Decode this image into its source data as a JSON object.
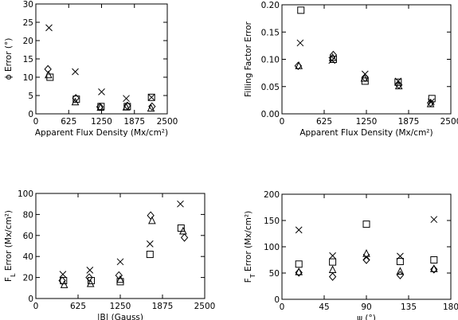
{
  "chart_data": [
    {
      "type": "scatter",
      "id": "phi-error",
      "title": "",
      "xlabel": "Apparent Flux Density (Mx/cm²)",
      "ylabel": "ϕ Error (°)",
      "xlim": [
        0,
        2500
      ],
      "ylim": [
        0,
        30
      ],
      "xticks": [
        0,
        625,
        1250,
        1875,
        2500
      ],
      "yticks": [
        0,
        5,
        10,
        15,
        20,
        25,
        30
      ],
      "xtick_labels": [
        "0",
        "625",
        "1250",
        "1875",
        "2500"
      ],
      "ytick_labels": [
        "0",
        "5",
        "10",
        "15",
        "20",
        "25",
        "30"
      ],
      "series": [
        {
          "marker": "x",
          "x": [
            250,
            750,
            1250,
            1720,
            2200
          ],
          "y": [
            23.5,
            11.5,
            6.0,
            4.2,
            4.5
          ]
        },
        {
          "marker": "square",
          "x": [
            270,
            770,
            1240,
            1740,
            2200
          ],
          "y": [
            10.0,
            4.0,
            2.0,
            2.0,
            4.5
          ]
        },
        {
          "marker": "diamond",
          "x": [
            230,
            760,
            1220,
            1740,
            2210
          ],
          "y": [
            12.2,
            4.3,
            1.9,
            2.2,
            2.0
          ]
        },
        {
          "marker": "triangle",
          "x": [
            240,
            750,
            1230,
            1720,
            2190
          ],
          "y": [
            10.6,
            3.2,
            1.7,
            1.8,
            1.5
          ]
        }
      ]
    },
    {
      "type": "scatter",
      "id": "filling-factor-error",
      "title": "",
      "xlabel": "Apparent Flux Density (Mx/cm²)",
      "ylabel": "Filling Factor Error",
      "xlim": [
        0,
        2500
      ],
      "ylim": [
        0,
        0.2
      ],
      "xticks": [
        0,
        625,
        1250,
        1875,
        2500
      ],
      "yticks": [
        0,
        0.05,
        0.1,
        0.15,
        0.2
      ],
      "xtick_labels": [
        "0",
        "625",
        "1250",
        "1875",
        "2500"
      ],
      "ytick_labels": [
        "0.00",
        "0.05",
        "0.10",
        "0.15",
        "0.20"
      ],
      "series": [
        {
          "marker": "x",
          "x": [
            270,
            740,
            1230,
            1720,
            2210
          ],
          "y": [
            0.13,
            0.098,
            0.073,
            0.06,
            0.022
          ]
        },
        {
          "marker": "square",
          "x": [
            280,
            760,
            1230,
            1720,
            2220
          ],
          "y": [
            0.19,
            0.1,
            0.06,
            0.058,
            0.028
          ]
        },
        {
          "marker": "diamond",
          "x": [
            240,
            760,
            1230,
            1730,
            2200
          ],
          "y": [
            0.088,
            0.108,
            0.066,
            0.053,
            0.02
          ]
        },
        {
          "marker": "triangle",
          "x": [
            250,
            750,
            1220,
            1730,
            2200
          ],
          "y": [
            0.088,
            0.103,
            0.065,
            0.051,
            0.018
          ]
        }
      ]
    },
    {
      "type": "scatter",
      "id": "fl-error",
      "title": "",
      "xlabel": "|B| (Gauss)",
      "ylabel": "F_L Error (Mx/cm²)",
      "xlim": [
        0,
        2500
      ],
      "ylim": [
        0,
        100
      ],
      "xticks": [
        0,
        625,
        1250,
        1875,
        2500
      ],
      "yticks": [
        0,
        20,
        40,
        60,
        80,
        100
      ],
      "xtick_labels": [
        "0",
        "625",
        "1250",
        "1875",
        "2500"
      ],
      "ytick_labels": [
        "0",
        "20",
        "40",
        "60",
        "80",
        "100"
      ],
      "series": [
        {
          "marker": "x",
          "x": [
            400,
            800,
            1250,
            1690,
            2140
          ],
          "y": [
            23,
            27,
            35,
            52,
            90
          ]
        },
        {
          "marker": "square",
          "x": [
            410,
            820,
            1250,
            1690,
            2150
          ],
          "y": [
            17,
            17,
            16,
            42,
            67
          ]
        },
        {
          "marker": "diamond",
          "x": [
            390,
            790,
            1230,
            1700,
            2200
          ],
          "y": [
            17,
            20,
            22,
            79,
            58
          ]
        },
        {
          "marker": "triangle",
          "x": [
            420,
            810,
            1250,
            1720,
            2180
          ],
          "y": [
            13,
            14,
            18,
            74,
            64
          ]
        }
      ]
    },
    {
      "type": "scatter",
      "id": "ft-error",
      "title": "",
      "xlabel": "ψ (°)",
      "ylabel": "F_T Error (Mx/cm²)",
      "xlim": [
        0,
        180
      ],
      "ylim": [
        0,
        200
      ],
      "xticks": [
        0,
        45,
        90,
        135,
        180
      ],
      "yticks": [
        0,
        50,
        100,
        150,
        200
      ],
      "xtick_labels": [
        "0",
        "45",
        "90",
        "135",
        "180"
      ],
      "ytick_labels": [
        "0",
        "50",
        "100",
        "150",
        "200"
      ],
      "series": [
        {
          "marker": "x",
          "x": [
            18,
            54,
            90,
            126,
            162
          ],
          "y": [
            132,
            83,
            80,
            82,
            152
          ]
        },
        {
          "marker": "square",
          "x": [
            18,
            54,
            90,
            126,
            162
          ],
          "y": [
            67,
            71,
            143,
            72,
            75
          ]
        },
        {
          "marker": "diamond",
          "x": [
            18,
            54,
            90,
            126,
            162
          ],
          "y": [
            51,
            43,
            75,
            46,
            57
          ]
        },
        {
          "marker": "triangle",
          "x": [
            18,
            54,
            90,
            126,
            162
          ],
          "y": [
            52,
            56,
            87,
            53,
            58
          ]
        }
      ]
    }
  ]
}
